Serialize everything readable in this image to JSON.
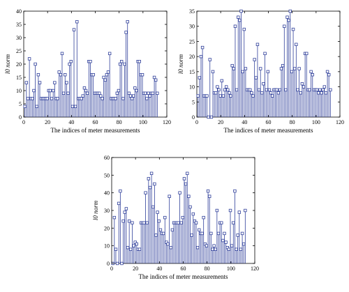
{
  "colors": {
    "stem": "#2f3f9a",
    "axis": "#000000"
  },
  "chart_data": [
    {
      "type": "stem",
      "xlabel": "The indices of meter measurements",
      "ylabel": "l0 norm",
      "xlim": [
        0,
        120
      ],
      "ylim": [
        0,
        40
      ],
      "xticks": [
        0,
        20,
        40,
        60,
        80,
        100,
        120
      ],
      "yticks": [
        0,
        5,
        10,
        15,
        20,
        25,
        30,
        35,
        40
      ],
      "values": [
        4,
        13,
        7,
        22,
        7,
        7,
        10,
        20,
        4,
        16,
        13,
        7,
        7,
        7,
        7,
        7,
        10,
        10,
        7,
        10,
        13,
        7,
        7,
        17,
        16,
        24,
        9,
        16,
        13,
        9,
        20,
        21,
        4,
        33,
        4,
        36,
        7,
        7,
        7,
        8,
        11,
        10,
        9,
        21,
        21,
        16,
        16,
        9,
        9,
        9,
        9,
        8,
        7,
        15,
        14,
        16,
        17,
        24,
        7,
        7,
        7,
        7,
        9,
        10,
        20,
        21,
        7,
        20,
        32,
        36,
        9,
        8,
        7,
        8,
        11,
        10,
        21,
        21,
        16,
        16,
        9,
        9,
        7,
        9,
        8,
        9,
        9,
        15,
        14,
        9
      ]
    },
    {
      "type": "stem",
      "xlabel": "The indices of meter measurements",
      "ylabel": "l0 norm",
      "xlim": [
        0,
        120
      ],
      "ylim": [
        0,
        35
      ],
      "xticks": [
        0,
        20,
        40,
        60,
        80,
        100,
        120
      ],
      "yticks": [
        0,
        5,
        10,
        15,
        20,
        25,
        30,
        35
      ],
      "values": [
        7,
        13,
        20,
        23,
        7,
        7,
        7,
        0,
        19,
        0,
        15,
        8,
        8,
        10,
        9,
        7,
        12,
        7,
        9,
        10,
        9,
        8,
        7,
        17,
        16,
        30,
        9,
        33,
        32,
        35,
        15,
        29,
        16,
        9,
        9,
        9,
        8,
        7,
        19,
        13,
        24,
        9,
        16,
        8,
        11,
        21,
        9,
        15,
        9,
        8,
        7,
        9,
        9,
        9,
        8,
        9,
        16,
        17,
        30,
        9,
        33,
        32,
        35,
        15,
        29,
        16,
        24,
        9,
        16,
        8,
        11,
        10,
        21,
        21,
        9,
        9,
        15,
        14,
        9,
        9,
        9,
        8,
        9,
        8,
        9,
        10,
        8,
        15,
        14,
        9
      ]
    },
    {
      "type": "stem",
      "xlabel": "The indices of meter measurements",
      "ylabel": "l0 norm",
      "xlim": [
        0,
        120
      ],
      "ylim": [
        0,
        60
      ],
      "xticks": [
        0,
        20,
        40,
        60,
        80,
        100,
        120
      ],
      "yticks": [
        0,
        10,
        20,
        30,
        40,
        50,
        60
      ],
      "values": [
        0,
        26,
        8,
        0,
        34,
        41,
        0,
        24,
        29,
        31,
        9,
        24,
        8,
        23,
        10,
        12,
        11,
        8,
        8,
        23,
        23,
        23,
        40,
        23,
        48,
        43,
        51,
        32,
        45,
        16,
        29,
        24,
        19,
        17,
        17,
        26,
        12,
        11,
        38,
        9,
        19,
        23,
        23,
        23,
        23,
        40,
        23,
        26,
        48,
        45,
        51,
        38,
        32,
        16,
        28,
        24,
        23,
        9,
        19,
        17,
        17,
        26,
        11,
        10,
        41,
        38,
        17,
        8,
        10,
        8,
        30,
        17,
        23,
        23,
        13,
        17,
        12,
        9,
        8,
        30,
        10,
        23,
        41,
        8,
        16,
        29,
        8,
        17,
        11,
        30
      ]
    }
  ]
}
